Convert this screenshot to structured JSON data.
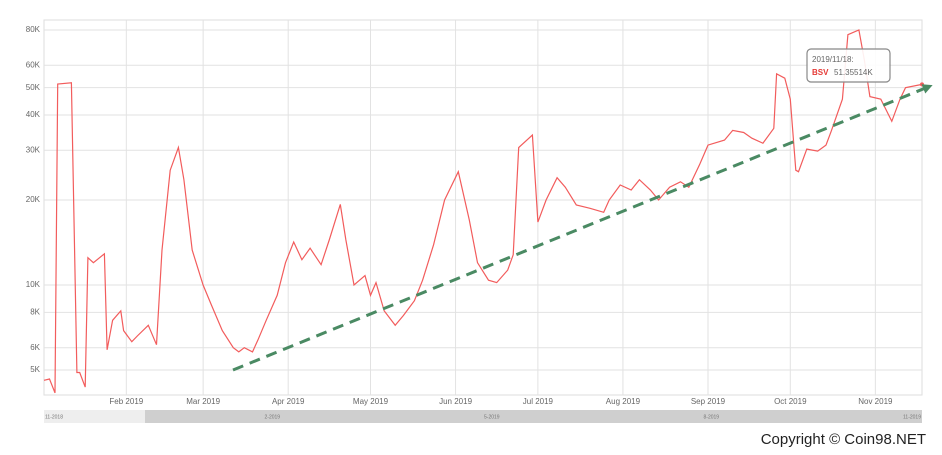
{
  "chart_data": {
    "type": "line",
    "x": [
      "2019/01/02",
      "2019/01/04",
      "2019/01/06",
      "2019/01/07",
      "2019/01/12",
      "2019/01/14",
      "2019/01/15",
      "2019/01/17",
      "2019/01/18",
      "2019/01/20",
      "2019/01/24",
      "2019/01/25",
      "2019/01/27",
      "2019/01/30",
      "2019/01/31",
      "2019/02/03",
      "2019/02/05",
      "2019/02/09",
      "2019/02/12",
      "2019/02/14",
      "2019/02/17",
      "2019/02/20",
      "2019/02/22",
      "2019/02/25",
      "2019/03/01",
      "2019/03/04",
      "2019/03/08",
      "2019/03/12",
      "2019/03/14",
      "2019/03/16",
      "2019/03/19",
      "2019/03/21",
      "2019/03/24",
      "2019/03/28",
      "2019/03/31",
      "2019/04/03",
      "2019/04/06",
      "2019/04/09",
      "2019/04/13",
      "2019/04/16",
      "2019/04/20",
      "2019/04/22",
      "2019/04/25",
      "2019/04/29",
      "2019/05/01",
      "2019/05/03",
      "2019/05/06",
      "2019/05/10",
      "2019/05/13",
      "2019/05/17",
      "2019/05/20",
      "2019/05/24",
      "2019/05/28",
      "2019/06/02",
      "2019/06/06",
      "2019/06/09",
      "2019/06/13",
      "2019/06/16",
      "2019/06/20",
      "2019/06/22",
      "2019/06/24",
      "2019/06/29",
      "2019/07/01",
      "2019/07/04",
      "2019/07/08",
      "2019/07/11",
      "2019/07/15",
      "2019/07/20",
      "2019/07/25",
      "2019/07/27",
      "2019/07/31",
      "2019/08/04",
      "2019/08/07",
      "2019/08/11",
      "2019/08/14",
      "2019/08/18",
      "2019/08/22",
      "2019/08/25",
      "2019/08/29",
      "2019/09/01",
      "2019/09/07",
      "2019/09/10",
      "2019/09/14",
      "2019/09/17",
      "2019/09/21",
      "2019/09/25",
      "2019/09/26",
      "2019/09/29",
      "2019/10/01",
      "2019/10/03",
      "2019/10/04",
      "2019/10/07",
      "2019/10/11",
      "2019/10/14",
      "2019/10/16",
      "2019/10/20",
      "2019/10/22",
      "2019/10/26",
      "2019/10/28",
      "2019/10/30",
      "2019/11/03",
      "2019/11/07",
      "2019/11/10",
      "2019/11/12",
      "2019/11/18"
    ],
    "series": [
      {
        "name": "BSV",
        "color": "#f25c5c",
        "values": [
          4600,
          4650,
          4150,
          51500,
          52000,
          4900,
          4900,
          4350,
          12500,
          12000,
          12900,
          5900,
          7500,
          8100,
          6900,
          6300,
          6600,
          7200,
          6150,
          13300,
          25500,
          30700,
          23600,
          13300,
          10000,
          8500,
          6900,
          6000,
          5800,
          6000,
          5800,
          6400,
          7500,
          9200,
          12000,
          14200,
          12300,
          13500,
          11800,
          14500,
          19300,
          14500,
          10000,
          10800,
          9200,
          10200,
          8100,
          7200,
          7800,
          8800,
          10400,
          13900,
          20000,
          25200,
          17000,
          12000,
          10400,
          10200,
          11300,
          12800,
          30700,
          34000,
          16700,
          20000,
          24000,
          22200,
          19200,
          18700,
          18100,
          20000,
          22600,
          21700,
          23600,
          21700,
          20000,
          22200,
          23200,
          22200,
          26800,
          31300,
          32600,
          35300,
          34700,
          33100,
          31800,
          35900,
          56000,
          54000,
          45500,
          25500,
          25200,
          30300,
          29800,
          31300,
          35300,
          45500,
          77000,
          80000,
          62500,
          46500,
          45500,
          38000,
          45500,
          50000,
          51355.14
        ]
      }
    ],
    "xlim": [
      "2019/01/02",
      "2019/11/18"
    ],
    "xticks": [
      {
        "value": "2019/02/01",
        "label": "Feb 2019"
      },
      {
        "value": "2019/03/01",
        "label": "Mar 2019"
      },
      {
        "value": "2019/04/01",
        "label": "Apr 2019"
      },
      {
        "value": "2019/05/01",
        "label": "May 2019"
      },
      {
        "value": "2019/06/01",
        "label": "Jun 2019"
      },
      {
        "value": "2019/07/01",
        "label": "Jul 2019"
      },
      {
        "value": "2019/08/01",
        "label": "Aug 2019"
      },
      {
        "value": "2019/09/01",
        "label": "Sep 2019"
      },
      {
        "value": "2019/10/01",
        "label": "Oct 2019"
      },
      {
        "value": "2019/11/01",
        "label": "Nov 2019"
      }
    ],
    "ylim": [
      4080,
      86800
    ],
    "yticks": [
      {
        "value": 5000,
        "label": "5K"
      },
      {
        "value": 6000,
        "label": "6K"
      },
      {
        "value": 8000,
        "label": "8K"
      },
      {
        "value": 10000,
        "label": "10K"
      },
      {
        "value": 20000,
        "label": "20K"
      },
      {
        "value": 30000,
        "label": "30K"
      },
      {
        "value": 40000,
        "label": "40K"
      },
      {
        "value": 50000,
        "label": "50K"
      },
      {
        "value": 60000,
        "label": "60K"
      },
      {
        "value": 80000,
        "label": "80K"
      }
    ],
    "log_scale": true,
    "grid": true,
    "tooltip": {
      "date": "2019/11/18:",
      "value": "51.35514K"
    },
    "navigator_labels": [
      "11-2018",
      "2-2019",
      "5-2019",
      "8-2019",
      "11-2019"
    ],
    "copyright": "Copyright © Coin98.NET"
  }
}
